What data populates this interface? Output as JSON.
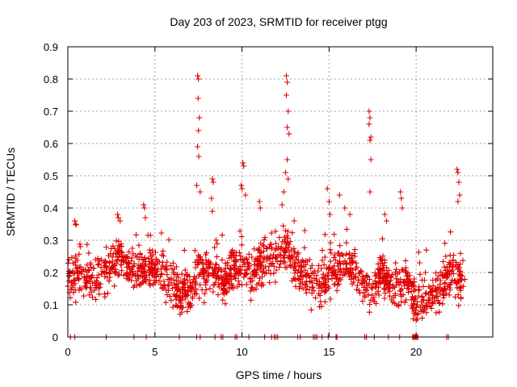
{
  "chart_data": {
    "type": "scatter",
    "title": "Day 203 of 2023, SRMTID for receiver ptgg",
    "xlabel": "GPS time / hours",
    "ylabel": "SRMTID / TECUs",
    "xlim": [
      0,
      24.4
    ],
    "ylim": [
      0,
      0.9
    ],
    "x_ticks": [
      0,
      5,
      10,
      15,
      20
    ],
    "x_tick_labels": [
      "0",
      "5",
      "10",
      "15",
      "20"
    ],
    "y_ticks": [
      0,
      0.1,
      0.2,
      0.3,
      0.4,
      0.5,
      0.6,
      0.7,
      0.8,
      0.9
    ],
    "y_tick_labels": [
      "0",
      "0.1",
      "0.2",
      "0.3",
      "0.4",
      "0.5",
      "0.6",
      "0.7",
      "0.8",
      "0.9"
    ],
    "grid": true,
    "marker": "plus",
    "color": "#e00000",
    "series": [
      {
        "name": "SRMTID",
        "baseline": [
          [
            0.0,
            0.18
          ],
          [
            0.5,
            0.2
          ],
          [
            1.0,
            0.18
          ],
          [
            1.5,
            0.17
          ],
          [
            2.0,
            0.19
          ],
          [
            2.5,
            0.22
          ],
          [
            3.0,
            0.25
          ],
          [
            3.5,
            0.22
          ],
          [
            4.0,
            0.2
          ],
          [
            4.5,
            0.22
          ],
          [
            5.0,
            0.21
          ],
          [
            5.5,
            0.19
          ],
          [
            6.0,
            0.15
          ],
          [
            6.5,
            0.14
          ],
          [
            7.0,
            0.15
          ],
          [
            7.5,
            0.2
          ],
          [
            8.0,
            0.2
          ],
          [
            8.5,
            0.22
          ],
          [
            9.0,
            0.17
          ],
          [
            9.5,
            0.22
          ],
          [
            10.0,
            0.24
          ],
          [
            10.5,
            0.2
          ],
          [
            11.0,
            0.22
          ],
          [
            11.5,
            0.24
          ],
          [
            12.0,
            0.26
          ],
          [
            12.5,
            0.27
          ],
          [
            13.0,
            0.22
          ],
          [
            13.5,
            0.2
          ],
          [
            14.0,
            0.17
          ],
          [
            14.5,
            0.15
          ],
          [
            15.0,
            0.2
          ],
          [
            15.5,
            0.22
          ],
          [
            16.0,
            0.24
          ],
          [
            16.5,
            0.2
          ],
          [
            17.0,
            0.15
          ],
          [
            17.5,
            0.14
          ],
          [
            18.0,
            0.2
          ],
          [
            18.5,
            0.15
          ],
          [
            19.0,
            0.16
          ],
          [
            19.5,
            0.18
          ],
          [
            20.0,
            0.1
          ],
          [
            20.5,
            0.12
          ],
          [
            21.0,
            0.13
          ],
          [
            21.5,
            0.16
          ],
          [
            22.0,
            0.2
          ],
          [
            22.5,
            0.17
          ],
          [
            22.8,
            0.16
          ]
        ],
        "spikes": [
          [
            7.45,
            0.81
          ],
          [
            7.5,
            0.8
          ],
          [
            7.48,
            0.74
          ],
          [
            7.55,
            0.68
          ],
          [
            7.5,
            0.64
          ],
          [
            7.45,
            0.59
          ],
          [
            7.52,
            0.56
          ],
          [
            7.4,
            0.47
          ],
          [
            7.6,
            0.45
          ],
          [
            8.3,
            0.49
          ],
          [
            8.35,
            0.48
          ],
          [
            8.25,
            0.43
          ],
          [
            8.3,
            0.39
          ],
          [
            10.05,
            0.54
          ],
          [
            10.1,
            0.53
          ],
          [
            9.95,
            0.47
          ],
          [
            10.0,
            0.46
          ],
          [
            10.2,
            0.44
          ],
          [
            12.55,
            0.81
          ],
          [
            12.6,
            0.79
          ],
          [
            12.55,
            0.75
          ],
          [
            12.65,
            0.7
          ],
          [
            12.6,
            0.65
          ],
          [
            12.7,
            0.63
          ],
          [
            12.6,
            0.55
          ],
          [
            12.5,
            0.51
          ],
          [
            12.65,
            0.49
          ],
          [
            12.4,
            0.45
          ],
          [
            14.9,
            0.46
          ],
          [
            15.0,
            0.42
          ],
          [
            15.05,
            0.38
          ],
          [
            15.6,
            0.44
          ],
          [
            15.9,
            0.4
          ],
          [
            4.35,
            0.41
          ],
          [
            4.4,
            0.4
          ],
          [
            4.45,
            0.37
          ],
          [
            17.3,
            0.7
          ],
          [
            17.35,
            0.68
          ],
          [
            17.3,
            0.66
          ],
          [
            17.4,
            0.62
          ],
          [
            17.35,
            0.61
          ],
          [
            17.4,
            0.55
          ],
          [
            17.35,
            0.45
          ],
          [
            19.1,
            0.45
          ],
          [
            19.15,
            0.43
          ],
          [
            19.2,
            0.4
          ],
          [
            22.35,
            0.52
          ],
          [
            22.4,
            0.51
          ],
          [
            22.45,
            0.48
          ],
          [
            22.5,
            0.44
          ],
          [
            22.4,
            0.42
          ],
          [
            0.4,
            0.36
          ],
          [
            0.45,
            0.35
          ],
          [
            2.85,
            0.38
          ],
          [
            2.9,
            0.37
          ],
          [
            3.0,
            0.36
          ],
          [
            11.0,
            0.42
          ],
          [
            11.05,
            0.4
          ],
          [
            12.3,
            0.41
          ],
          [
            13.0,
            0.36
          ],
          [
            13.6,
            0.33
          ],
          [
            16.2,
            0.38
          ],
          [
            18.2,
            0.38
          ],
          [
            18.3,
            0.36
          ],
          [
            21.7,
            0.25
          ],
          [
            20.2,
            0.23
          ]
        ],
        "zeros": [
          0.15,
          0.4,
          2.2,
          3.8,
          4.5,
          6.4,
          7.4,
          7.6,
          8.45,
          8.8,
          8.9,
          9.6,
          9.7,
          10.4,
          11.3,
          11.7,
          11.85,
          11.95,
          12.05,
          13.2,
          13.35,
          14.1,
          14.2,
          14.3,
          14.6,
          14.95,
          15.4,
          15.45,
          17.05,
          17.15,
          17.6,
          18.4,
          19.05,
          19.8,
          19.85,
          19.9,
          19.95,
          20.0,
          20.05,
          20.1,
          21.75,
          21.85
        ]
      }
    ]
  }
}
